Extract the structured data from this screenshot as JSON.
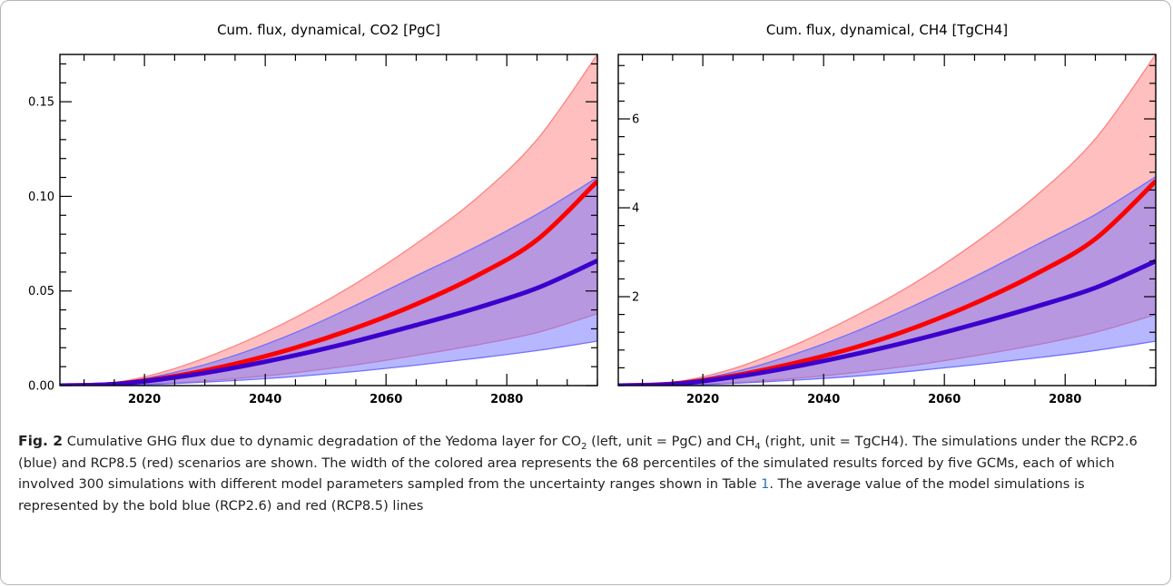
{
  "chart_data": [
    {
      "type": "area",
      "title": "Cum. flux, dynamical, CO2 [PgC]",
      "xlabel": "",
      "ylabel": "",
      "xlim": [
        2006,
        2095
      ],
      "ylim": [
        0,
        0.175
      ],
      "x_major_ticks": [
        2020,
        2040,
        2060,
        2080
      ],
      "y_major_ticks": [
        0.0,
        0.05,
        0.1,
        0.15
      ],
      "x_tick_labels": [
        "2020",
        "2040",
        "2060",
        "2080"
      ],
      "y_tick_labels": [
        "0.00",
        "0.05",
        "0.10",
        "0.15"
      ],
      "grid": false,
      "x": [
        2006,
        2015,
        2025,
        2035,
        2045,
        2055,
        2065,
        2075,
        2085,
        2095
      ],
      "series": [
        {
          "color": "#ff0000",
          "band_color": "#ff8080",
          "mean": [
            0,
            0.0008,
            0.005,
            0.0115,
            0.02,
            0.0305,
            0.043,
            0.058,
            0.077,
            0.108
          ],
          "lower": [
            0,
            0.0003,
            0.0015,
            0.0037,
            0.0068,
            0.011,
            0.016,
            0.0215,
            0.028,
            0.038
          ],
          "upper": [
            0,
            0.0015,
            0.009,
            0.021,
            0.036,
            0.054,
            0.075,
            0.099,
            0.13,
            0.175
          ]
        },
        {
          "color": "#3c00cc",
          "band_color": "#7070ff",
          "mean": [
            0,
            0.0007,
            0.0043,
            0.0095,
            0.016,
            0.0235,
            0.032,
            0.041,
            0.0515,
            0.066
          ],
          "lower": [
            0,
            0.0002,
            0.0011,
            0.0027,
            0.0048,
            0.0075,
            0.0108,
            0.0145,
            0.0185,
            0.0235
          ],
          "upper": [
            0,
            0.0013,
            0.007,
            0.016,
            0.028,
            0.0425,
            0.058,
            0.0735,
            0.0905,
            0.11
          ]
        }
      ]
    },
    {
      "type": "area",
      "title": "Cum. flux, dynamical, CH4 [TgCH4]",
      "xlabel": "",
      "ylabel": "",
      "xlim": [
        2006,
        2095
      ],
      "ylim": [
        0,
        7.45
      ],
      "x_major_ticks": [
        2020,
        2040,
        2060,
        2080
      ],
      "y_major_ticks": [
        2,
        4,
        6
      ],
      "x_tick_labels": [
        "2020",
        "2040",
        "2060",
        "2080"
      ],
      "y_tick_labels": [
        "2",
        "4",
        "6"
      ],
      "grid": false,
      "x": [
        2006,
        2015,
        2025,
        2035,
        2045,
        2055,
        2065,
        2075,
        2085,
        2095
      ],
      "series": [
        {
          "color": "#ff0000",
          "band_color": "#ff8080",
          "mean": [
            0,
            0.04,
            0.22,
            0.5,
            0.85,
            1.3,
            1.85,
            2.5,
            3.3,
            4.6
          ],
          "lower": [
            0,
            0.012,
            0.065,
            0.16,
            0.29,
            0.46,
            0.67,
            0.91,
            1.2,
            1.6
          ],
          "upper": [
            0,
            0.07,
            0.38,
            0.9,
            1.55,
            2.3,
            3.2,
            4.25,
            5.55,
            7.45
          ]
        },
        {
          "color": "#3c00cc",
          "band_color": "#7070ff",
          "mean": [
            0,
            0.03,
            0.19,
            0.42,
            0.7,
            1.02,
            1.38,
            1.77,
            2.2,
            2.8
          ],
          "lower": [
            0,
            0.009,
            0.05,
            0.12,
            0.21,
            0.33,
            0.47,
            0.62,
            0.79,
            1.0
          ],
          "upper": [
            0,
            0.06,
            0.3,
            0.7,
            1.2,
            1.8,
            2.45,
            3.15,
            3.85,
            4.7
          ]
        }
      ]
    }
  ],
  "caption": {
    "label": "Fig. 2",
    "part1": " Cumulative GHG flux due to dynamic degradation of the Yedoma layer for CO",
    "sub1": "2",
    "part2": " (left, unit = PgC) and CH",
    "sub2": "4",
    "part3": " (right, unit = TgCH4). The simulations under the RCP2.6 (blue) and RCP8.5 (red) scenarios are shown. The width of the colored area represents the 68 percentiles of the simulated results forced by five GCMs, each of which involved 300 simulations with different model parameters sampled from the uncertainty ranges shown in Table ",
    "table_ref": "1",
    "part4": ". The average value of the model simulations is represented by the bold blue (RCP2.6) and red (RCP8.5) lines"
  }
}
